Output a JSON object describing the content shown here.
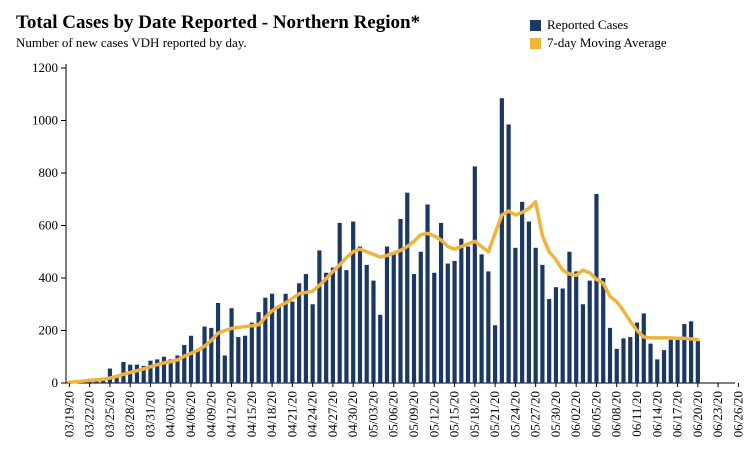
{
  "colors": {
    "bar": "#1b3764",
    "line": "#f2b33d",
    "axis": "#000000",
    "grid": "#e6e6e6"
  },
  "chart_data": {
    "type": "bar",
    "title": "Total Cases by Date Reported - Northern Region*",
    "subtitle": "Number of new cases VDH reported by day.",
    "xlabel": "",
    "ylabel": "",
    "ylim": [
      0,
      1200
    ],
    "yticks": [
      0,
      200,
      400,
      600,
      800,
      1000,
      1200
    ],
    "grid": false,
    "legend_position": "top-right",
    "x_tick_labels": [
      "03/19/20",
      "03/22/20",
      "03/25/20",
      "03/28/20",
      "03/31/20",
      "04/03/20",
      "04/06/20",
      "04/09/20",
      "04/12/20",
      "04/15/20",
      "04/18/20",
      "04/21/20",
      "04/24/20",
      "04/27/20",
      "04/30/20",
      "05/03/20",
      "05/06/20",
      "05/09/20",
      "05/12/20",
      "05/15/20",
      "05/18/20",
      "05/21/20",
      "05/24/20",
      "05/27/20",
      "05/30/20",
      "06/02/20",
      "06/05/20",
      "06/08/20",
      "06/11/20",
      "06/14/20",
      "06/17/20",
      "06/20/20",
      "06/23/20",
      "06/26/20"
    ],
    "series": [
      {
        "name": "Reported Cases",
        "kind": "bar",
        "start_date": "03/19/20",
        "values": [
          5,
          5,
          10,
          15,
          15,
          20,
          55,
          30,
          80,
          70,
          70,
          65,
          85,
          90,
          100,
          90,
          105,
          145,
          180,
          125,
          215,
          210,
          305,
          105,
          285,
          175,
          180,
          230,
          270,
          325,
          340,
          290,
          340,
          310,
          380,
          415,
          300,
          505,
          420,
          440,
          610,
          430,
          615,
          520,
          450,
          390,
          260,
          520,
          500,
          625,
          725,
          415,
          500,
          680,
          420,
          610,
          455,
          465,
          550,
          520,
          825,
          490,
          425,
          220,
          1085,
          985,
          515,
          690,
          615,
          515,
          450,
          320,
          365,
          360,
          500,
          425,
          300,
          390,
          720,
          400,
          210,
          130,
          170,
          175,
          230,
          265,
          150,
          90,
          125,
          165,
          170,
          225,
          235,
          160
        ]
      },
      {
        "name": "7-day Moving Average",
        "kind": "line",
        "start_date": "03/19/20",
        "values": [
          3,
          5,
          7,
          10,
          12,
          14,
          19,
          25,
          33,
          40,
          47,
          54,
          62,
          70,
          77,
          81,
          88,
          102,
          113,
          125,
          140,
          162,
          190,
          200,
          208,
          212,
          215,
          218,
          222,
          250,
          275,
          292,
          305,
          322,
          340,
          345,
          350,
          372,
          398,
          425,
          450,
          478,
          500,
          510,
          500,
          490,
          480,
          486,
          495,
          505,
          520,
          540,
          565,
          570,
          560,
          545,
          520,
          510,
          520,
          530,
          540,
          520,
          500,
          570,
          640,
          655,
          640,
          650,
          665,
          690,
          560,
          500,
          470,
          430,
          415,
          410,
          430,
          420,
          395,
          380,
          330,
          310,
          275,
          235,
          200,
          175,
          172,
          172,
          172,
          172,
          170,
          170,
          168,
          165
        ]
      }
    ]
  }
}
